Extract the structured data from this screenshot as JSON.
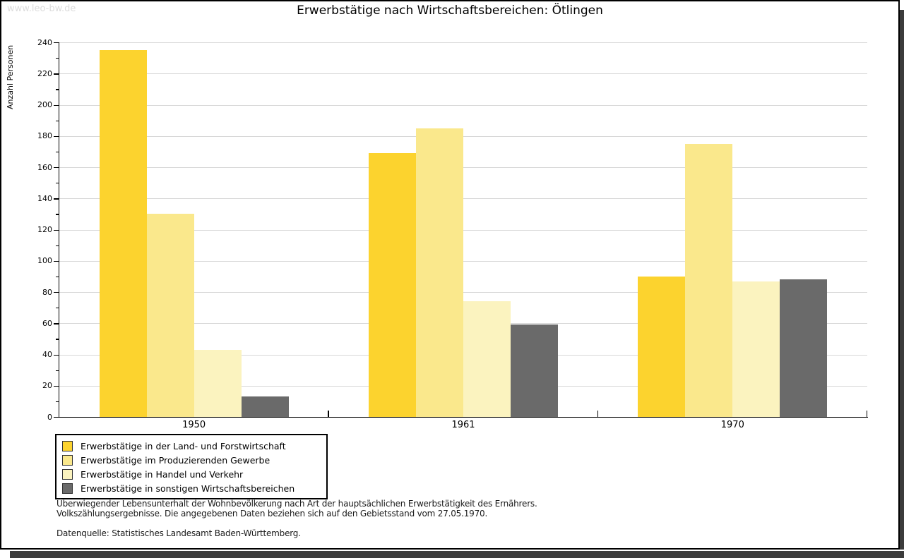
{
  "watermark": "www.leo-bw.de",
  "title": "Erwerbstätige nach Wirtschaftsbereichen: Ötlingen",
  "chart_data": {
    "type": "bar",
    "title": "Erwerbstätige nach Wirtschaftsbereichen: Ötlingen",
    "xlabel": "",
    "ylabel": "Anzahl Personen",
    "ylim": [
      0,
      240
    ],
    "ytick_step": 20,
    "ytick_minor_step": 10,
    "grid": true,
    "legend_position": "bottom-left",
    "categories": [
      "1950",
      "1961",
      "1970"
    ],
    "series": [
      {
        "name": "Erwerbstätige in der Land- und Forstwirtschaft",
        "color": "#FCD32E",
        "values": [
          235,
          169,
          90
        ]
      },
      {
        "name": "Erwerbstätige im Produzierenden Gewerbe",
        "color": "#FAE88C",
        "values": [
          130,
          185,
          175
        ]
      },
      {
        "name": "Erwerbstätige in Handel und Verkehr",
        "color": "#FBF3BF",
        "values": [
          43,
          74,
          87
        ]
      },
      {
        "name": "Erwerbstätige in sonstigen Wirtschaftsbereichen",
        "color": "#6A6A6A",
        "values": [
          13,
          59,
          88
        ]
      }
    ]
  },
  "footnotes": {
    "line1": "Überwiegender Lebensunterhalt der Wohnbevölkerung nach Art der hauptsächlichen Erwerbstätigkeit des Ernährers.",
    "line2": "Volkszählungsergebnisse. Die angegebenen Daten beziehen sich auf den Gebietsstand vom 27.05.1970.",
    "source": "Datenquelle: Statistisches Landesamt Baden-Württemberg."
  }
}
